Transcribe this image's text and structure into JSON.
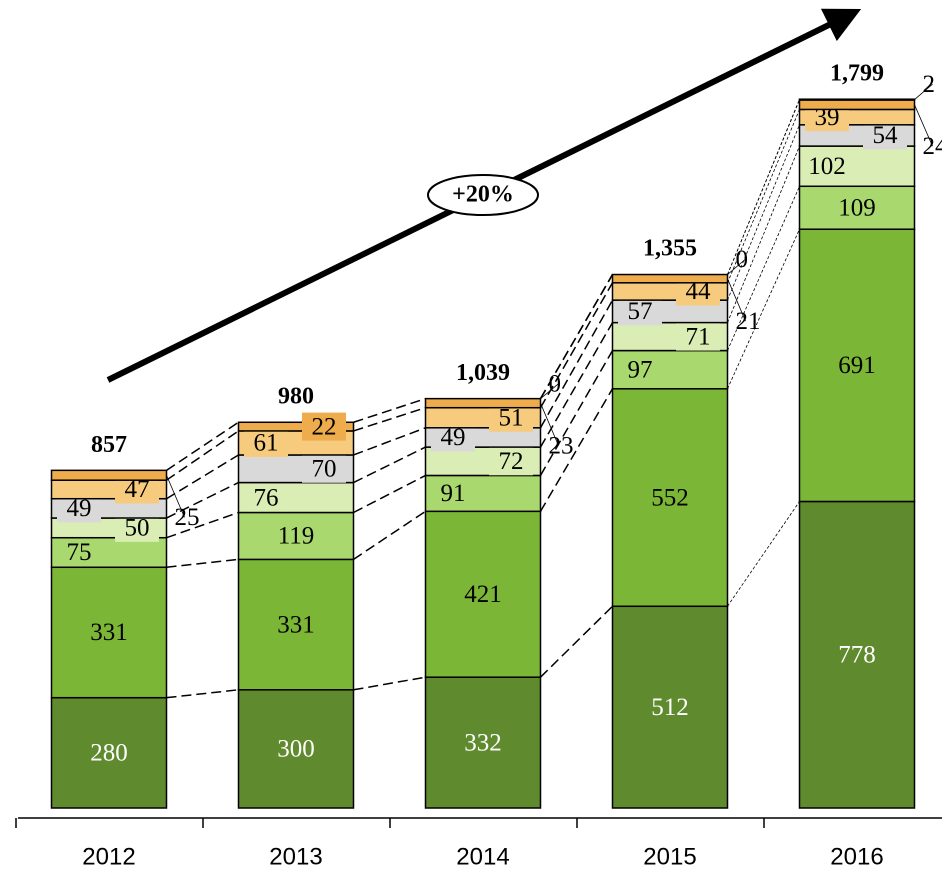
{
  "chart_data": {
    "type": "stacked_bar",
    "categories": [
      "2012",
      "2013",
      "2014",
      "2015",
      "2016"
    ],
    "series": [
      {
        "color": "#5f8a2e",
        "values": [
          280,
          300,
          332,
          512,
          778
        ]
      },
      {
        "color": "#7cb637",
        "values": [
          331,
          331,
          421,
          552,
          691
        ]
      },
      {
        "color": "#a9d86e",
        "values": [
          75,
          119,
          91,
          97,
          109
        ]
      },
      {
        "color": "#d9edb4",
        "values": [
          50,
          76,
          72,
          71,
          102
        ]
      },
      {
        "color": "#d9d9d9",
        "values": [
          49,
          70,
          49,
          57,
          54
        ]
      },
      {
        "color": "#f6cb7e",
        "values": [
          47,
          61,
          51,
          44,
          39
        ]
      },
      {
        "color": "#efac4c",
        "values": [
          25,
          22,
          23,
          21,
          24
        ]
      },
      {
        "color": "#e3902a",
        "values": [
          null,
          null,
          0,
          0,
          2
        ]
      }
    ],
    "totals": {
      "values": [
        857,
        980,
        1039,
        1355,
        1799
      ],
      "value_labels": [
        "857",
        "980",
        "1,039",
        "1,355",
        "1,799"
      ]
    },
    "annotation": "+20%"
  }
}
